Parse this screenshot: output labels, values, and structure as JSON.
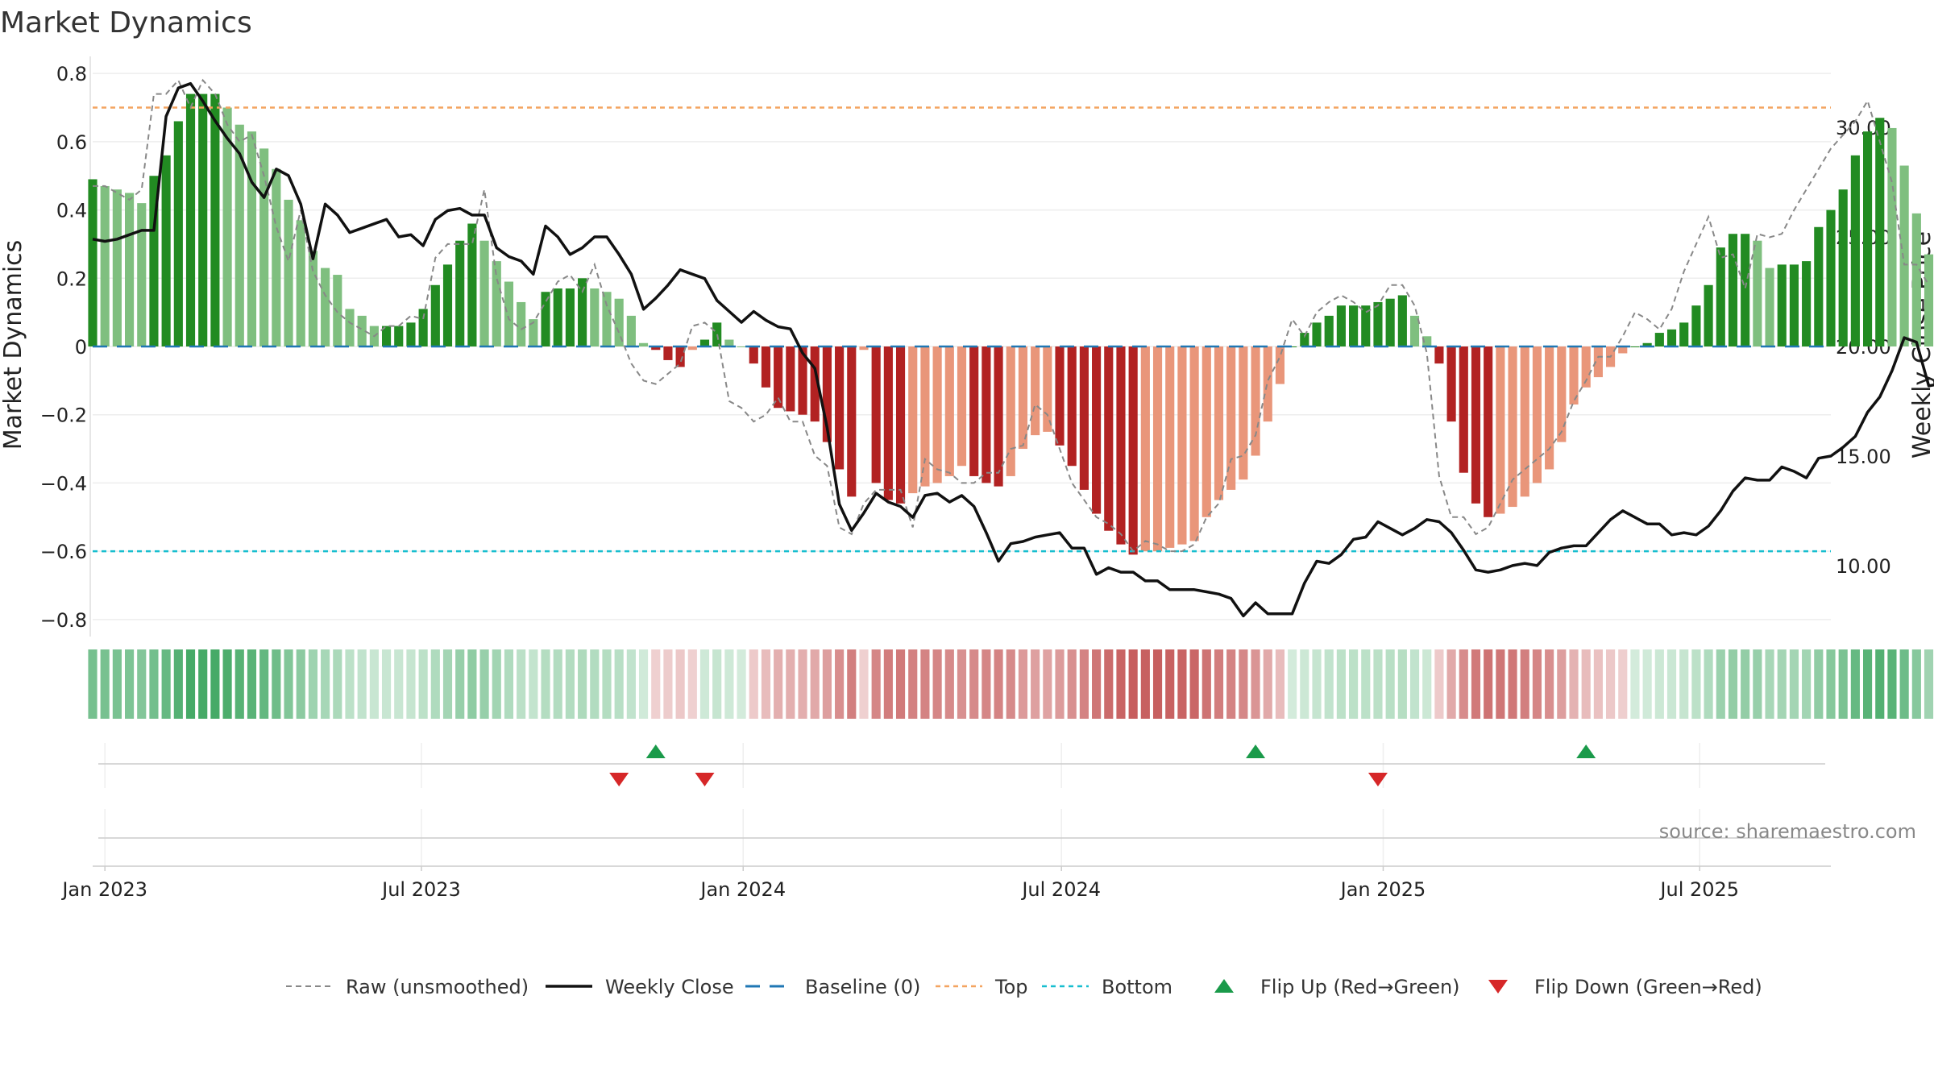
{
  "chart_data": {
    "type": "bar",
    "title": "Market Dynamics",
    "ylabel": "Market Dynamics",
    "y2label": "Weekly Close Price",
    "ylim": [
      -0.85,
      0.85
    ],
    "y2lim": [
      6.76,
      33.24
    ],
    "y_ticks": [
      -0.8,
      -0.6,
      -0.4,
      -0.2,
      0,
      0.2,
      0.4,
      0.6,
      0.8
    ],
    "y_tick_labels": [
      "−0.8",
      "−0.6",
      "−0.4",
      "−0.2",
      "0",
      "0.2",
      "0.4",
      "0.6",
      "0.8"
    ],
    "y2_ticks": [
      10,
      15,
      20,
      25,
      30
    ],
    "y2_tick_labels": [
      "10.00",
      "15.00",
      "20.00",
      "25.00",
      "30.00"
    ],
    "x_tick_labels": [
      "Jan 2023",
      "Jul 2023",
      "Jan 2024",
      "Jul 2024",
      "Jan 2025",
      "Jul 2025"
    ],
    "x_tick_dates": [
      "2023-01-01",
      "2023-07-01",
      "2024-01-01",
      "2024-07-01",
      "2025-01-01",
      "2025-07-01"
    ],
    "weeks_start": "2022-12-25",
    "weeks_end": "2025-09-14",
    "market_dynamics": [
      0.49,
      0.47,
      0.46,
      0.45,
      0.42,
      0.5,
      0.56,
      0.66,
      0.74,
      0.74,
      0.74,
      0.7,
      0.65,
      0.63,
      0.58,
      0.52,
      0.43,
      0.37,
      0.28,
      0.23,
      0.21,
      0.11,
      0.09,
      0.06,
      0.06,
      0.06,
      0.07,
      0.11,
      0.18,
      0.24,
      0.31,
      0.36,
      0.31,
      0.25,
      0.19,
      0.13,
      0.08,
      0.16,
      0.17,
      0.17,
      0.2,
      0.17,
      0.16,
      0.14,
      0.09,
      0.01,
      -0.01,
      -0.04,
      -0.06,
      -0.01,
      0.02,
      0.07,
      0.02,
      0,
      -0.05,
      -0.12,
      -0.18,
      -0.19,
      -0.2,
      -0.22,
      -0.28,
      -0.36,
      -0.44,
      -0.01,
      -0.4,
      -0.45,
      -0.46,
      -0.43,
      -0.41,
      -0.4,
      -0.38,
      -0.35,
      -0.38,
      -0.4,
      -0.41,
      -0.38,
      -0.3,
      -0.26,
      -0.25,
      -0.29,
      -0.35,
      -0.42,
      -0.49,
      -0.54,
      -0.58,
      -0.61,
      -0.6,
      -0.6,
      -0.59,
      -0.58,
      -0.57,
      -0.5,
      -0.45,
      -0.42,
      -0.39,
      -0.32,
      -0.22,
      -0.11,
      0,
      0.04,
      0.07,
      0.09,
      0.12,
      0.12,
      0.12,
      0.13,
      0.14,
      0.15,
      0.09,
      0.03,
      -0.05,
      -0.22,
      -0.37,
      -0.46,
      -0.5,
      -0.49,
      -0.47,
      -0.44,
      -0.4,
      -0.36,
      -0.28,
      -0.17,
      -0.12,
      -0.09,
      -0.06,
      -0.02,
      0,
      0.01,
      0.04,
      0.05,
      0.07,
      0.12,
      0.18,
      0.29,
      0.33,
      0.33,
      0.31,
      0.23,
      0.24,
      0.24,
      0.25,
      0.35,
      0.4,
      0.46,
      0.56,
      0.63,
      0.67,
      0.64,
      0.53,
      0.39,
      0.27,
      0.18
    ],
    "raw_unsmoothed": [
      0.47,
      0.47,
      0.45,
      0.43,
      0.46,
      0.74,
      0.74,
      0.78,
      0.7,
      0.78,
      0.74,
      0.65,
      0.6,
      0.62,
      0.5,
      0.35,
      0.25,
      0.4,
      0.22,
      0.15,
      0.1,
      0.07,
      0.05,
      0.03,
      0.06,
      0.06,
      0.09,
      0.08,
      0.26,
      0.3,
      0.3,
      0.3,
      0.46,
      0.2,
      0.08,
      0.05,
      0.07,
      0.13,
      0.19,
      0.21,
      0.16,
      0.24,
      0.12,
      0.04,
      -0.05,
      -0.1,
      -0.11,
      -0.08,
      -0.05,
      0.06,
      0.07,
      0.04,
      -0.16,
      -0.18,
      -0.22,
      -0.2,
      -0.15,
      -0.22,
      -0.22,
      -0.32,
      -0.35,
      -0.53,
      -0.55,
      -0.46,
      -0.42,
      -0.42,
      -0.42,
      -0.53,
      -0.33,
      -0.36,
      -0.37,
      -0.4,
      -0.4,
      -0.37,
      -0.37,
      -0.3,
      -0.29,
      -0.17,
      -0.2,
      -0.3,
      -0.4,
      -0.45,
      -0.5,
      -0.52,
      -0.55,
      -0.6,
      -0.57,
      -0.58,
      -0.6,
      -0.6,
      -0.58,
      -0.5,
      -0.46,
      -0.33,
      -0.32,
      -0.26,
      -0.1,
      -0.03,
      0.08,
      0.03,
      0.1,
      0.13,
      0.15,
      0.13,
      0.1,
      0.12,
      0.18,
      0.18,
      0.12,
      -0.02,
      -0.38,
      -0.5,
      -0.5,
      -0.55,
      -0.53,
      -0.46,
      -0.39,
      -0.36,
      -0.33,
      -0.3,
      -0.25,
      -0.16,
      -0.1,
      -0.03,
      -0.03,
      0.03,
      0.1,
      0.08,
      0.05,
      0.11,
      0.22,
      0.3,
      0.38,
      0.26,
      0.27,
      0.17,
      0.33,
      0.32,
      0.33,
      0.4,
      0.46,
      0.52,
      0.58,
      0.62,
      0.66,
      0.72,
      0.6,
      0.48,
      0.24,
      0.24,
      0.18
    ],
    "weekly_close": [
      24.9,
      24.8,
      24.9,
      25.1,
      25.3,
      25.3,
      30.5,
      31.8,
      32.0,
      31.2,
      30.3,
      29.5,
      28.8,
      27.5,
      26.8,
      28.1,
      27.8,
      26.5,
      24.0,
      26.5,
      26.0,
      25.2,
      25.4,
      25.6,
      25.8,
      25.0,
      25.1,
      24.6,
      25.8,
      26.2,
      26.3,
      26.0,
      26.0,
      24.5,
      24.1,
      23.9,
      23.3,
      25.5,
      25.0,
      24.2,
      24.5,
      25.0,
      25.0,
      24.2,
      23.3,
      21.7,
      22.2,
      22.8,
      23.5,
      23.3,
      23.1,
      22.1,
      21.6,
      21.1,
      21.6,
      21.2,
      20.9,
      20.8,
      19.7,
      19.0,
      16.3,
      12.8,
      11.6,
      12.4,
      13.3,
      12.9,
      12.7,
      12.2,
      13.2,
      13.3,
      12.9,
      13.2,
      12.7,
      11.5,
      10.2,
      11.0,
      11.1,
      11.3,
      11.4,
      11.5,
      10.8,
      10.8,
      9.6,
      9.9,
      9.7,
      9.7,
      9.3,
      9.3,
      8.9,
      8.9,
      8.9,
      8.8,
      8.7,
      8.5,
      7.7,
      8.3,
      7.8,
      7.8,
      7.8,
      9.2,
      10.2,
      10.1,
      10.5,
      11.2,
      11.3,
      12.0,
      11.7,
      11.4,
      11.7,
      12.1,
      12.0,
      11.5,
      10.7,
      9.8,
      9.7,
      9.8,
      10.0,
      10.1,
      10.0,
      10.6,
      10.8,
      10.9,
      10.9,
      11.5,
      12.1,
      12.5,
      12.2,
      11.9,
      11.9,
      11.4,
      11.5,
      11.4,
      11.8,
      12.5,
      13.4,
      14.0,
      13.9,
      13.9,
      14.5,
      14.3,
      14.0,
      14.9,
      15.0,
      15.4,
      15.9,
      17.0,
      17.7,
      18.9,
      20.4,
      20.2,
      18.2,
      18.3,
      18.7,
      18.5,
      18.0
    ],
    "reference_lines": {
      "baseline": 0,
      "top": 0.7,
      "bottom": -0.6
    },
    "flip_up_dates": [
      "2023-11-12",
      "2024-10-20",
      "2025-04-27"
    ],
    "flip_down_dates": [
      "2023-10-22",
      "2023-12-10",
      "2024-12-29"
    ],
    "source": "source: sharemaestro.com",
    "legend": [
      {
        "label": "Raw (unsmoothed)",
        "style": "dashed-gray"
      },
      {
        "label": "Weekly Close",
        "style": "solid-black"
      },
      {
        "label": "Baseline (0)",
        "style": "dashed-blue"
      },
      {
        "label": "Top",
        "style": "dotted-orange"
      },
      {
        "label": "Bottom",
        "style": "dotted-cyan"
      },
      {
        "label": "Flip Up (Red→Green)",
        "style": "triangle-up-green"
      },
      {
        "label": "Flip Down (Green→Red)",
        "style": "triangle-down-red"
      }
    ],
    "legend_position": "bottom-center",
    "colors": {
      "strong_green": "#228b22",
      "light_green": "#7fbf7f",
      "strong_red": "#b22222",
      "light_red": "#e9967a",
      "raw_line": "#888888",
      "close_line": "#111111",
      "baseline": "#1f77b4",
      "top_line": "#f4a460",
      "bottom_line": "#17becf",
      "flip_up": "#1a9a4a",
      "flip_down": "#d62728"
    },
    "grid": true
  }
}
